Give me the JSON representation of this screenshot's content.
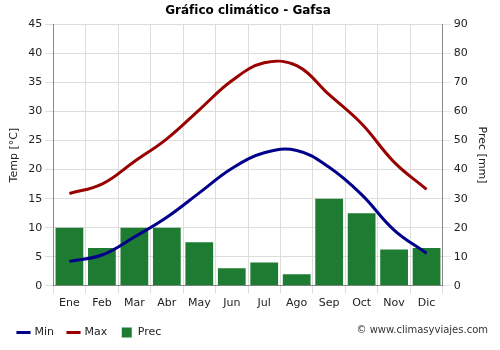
{
  "chart_data": {
    "type": "bar",
    "title": "Gráfico climático - Gafsa",
    "y_label": "Temp [°C]",
    "y2_label": "Prec [mm]",
    "annotations": [
      "© www.climasyviajes.com"
    ],
    "categories": [
      "Ene",
      "Feb",
      "Mar",
      "Abr",
      "May",
      "Jun",
      "Jul",
      "Ago",
      "Sep",
      "Oct",
      "Nov",
      "Dic"
    ],
    "series": [
      {
        "name": "Prec",
        "type": "bar",
        "axis": "y2",
        "color": "#1e7b32",
        "values": [
          20,
          13,
          20,
          20,
          15,
          6,
          8,
          4,
          30,
          25,
          12.5,
          13
        ]
      },
      {
        "name": "Min",
        "type": "line",
        "color": "#00008b",
        "values": [
          4.2,
          5.3,
          8.4,
          11.8,
          16.0,
          20.2,
          22.9,
          23.3,
          20.4,
          15.7,
          9.6,
          5.6
        ]
      },
      {
        "name": "Max",
        "type": "line",
        "color": "#990000",
        "values": [
          15.9,
          17.5,
          21.4,
          25.3,
          30.3,
          35.3,
          38.4,
          37.9,
          32.9,
          27.9,
          21.3,
          16.6
        ]
      }
    ],
    "ylim": [
      0,
      45
    ],
    "yticks": [
      0,
      5,
      10,
      15,
      20,
      25,
      30,
      35,
      40,
      45
    ],
    "y2lim": [
      0,
      90
    ],
    "y2ticks": [
      0,
      10,
      20,
      30,
      40,
      50,
      60,
      70,
      80,
      90
    ],
    "grid": true,
    "legend": "bottom"
  }
}
